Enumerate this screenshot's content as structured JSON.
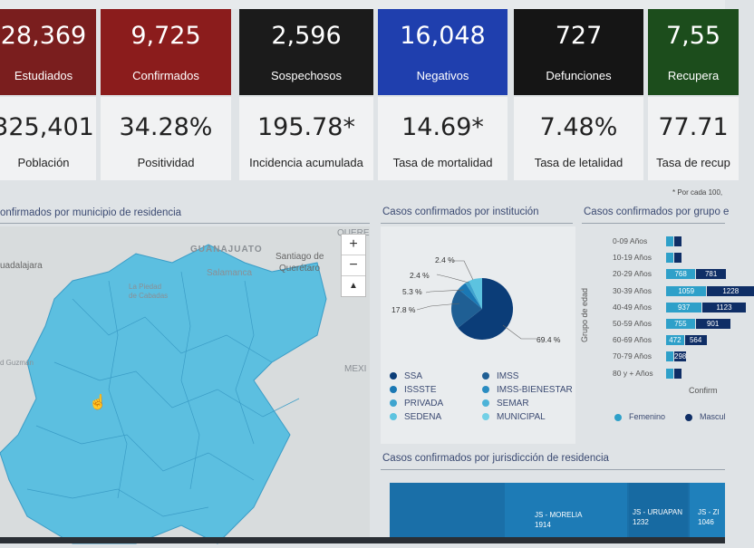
{
  "top_cards": [
    {
      "value": "28,369",
      "label": "Estudiados",
      "bg": "#7a1e1e"
    },
    {
      "value": "9,725",
      "label": "Confirmados",
      "bg": "#8b1c1c"
    },
    {
      "value": "2,596",
      "label": "Sospechosos",
      "bg": "#1b1b1b"
    },
    {
      "value": "16,048",
      "label": "Negativos",
      "bg": "#1f3fae"
    },
    {
      "value": "727",
      "label": "Defunciones",
      "bg": "#151515"
    },
    {
      "value": "7,55",
      "label": "Recupera",
      "bg": "#1c4d1c"
    }
  ],
  "bottom_cards": [
    {
      "value": "325,401",
      "label": "Población"
    },
    {
      "value": "34.28%",
      "label": "Positividad"
    },
    {
      "value": "195.78*",
      "label": "Incidencia acumulada"
    },
    {
      "value": "14.69*",
      "label": "Tasa de mortalidad"
    },
    {
      "value": "7.48%",
      "label": "Tasa de letalidad"
    },
    {
      "value": "77.71",
      "label": "Tasa de recup"
    }
  ],
  "footnote": "* Por cada 100,",
  "map": {
    "title": "onfirmados por municipio de residencia",
    "labels": {
      "guanajuato": "GUANAJUATO",
      "queretaro": "QUERE",
      "santiago": "Santiago de",
      "queretaro_city": "Querétaro",
      "guadalajara": "uadalajara",
      "salamanca": "Salamanca",
      "piedad": "La Piedad",
      "piedad2": "de Cabadas",
      "mexico": "MEXI",
      "guzman": "d Guzmán"
    },
    "zoom_in": "+",
    "zoom_out": "−",
    "reset": "▲"
  },
  "pie": {
    "title": "Casos confirmados por institución",
    "labels": [
      "2.4 %",
      "2.4 %",
      "5.3 %",
      "17.8 %",
      "69.4 %"
    ],
    "legend": [
      {
        "name": "SSA",
        "color": "#0b3d78"
      },
      {
        "name": "IMSS",
        "color": "#1f5f94"
      },
      {
        "name": "ISSSTE",
        "color": "#1a78b4"
      },
      {
        "name": "IMSS-BIENESTAR",
        "color": "#2a8cc1"
      },
      {
        "name": "PRIVADA",
        "color": "#3ea4cf"
      },
      {
        "name": "SEMAR",
        "color": "#4cb3d8"
      },
      {
        "name": "SEDENA",
        "color": "#5cc3e0"
      },
      {
        "name": "MUNICIPAL",
        "color": "#72d0e6"
      }
    ]
  },
  "chart_data": {
    "type": "bar",
    "title": "Casos confirmados por grupo e",
    "ylabel": "Grupo de edad",
    "xlabel": "Confirm",
    "categories": [
      "0-09 Años",
      "10-19 Años",
      "20-29 Años",
      "30-39 Años",
      "40-49 Años",
      "50-59 Años",
      "60-69 Años",
      "70-79 Años",
      "80 y + Años"
    ],
    "series": [
      {
        "name": "Femenino",
        "color": "#2ea0c9",
        "values": [
          null,
          null,
          768,
          1059,
          937,
          755,
          472,
          null,
          null
        ]
      },
      {
        "name": "Mascul",
        "color": "#0f2e66",
        "values": [
          null,
          null,
          781,
          1228,
          1123,
          901,
          564,
          298,
          null
        ]
      }
    ]
  },
  "jurisdiccion": {
    "title": "Casos confirmados por jurisdicción de residencia",
    "items": [
      {
        "name": "JS - MORELIA",
        "value": "1914"
      },
      {
        "name": "JS - URUAPAN",
        "value": "1232"
      },
      {
        "name": "JS - ZI",
        "value": "1046"
      }
    ]
  }
}
